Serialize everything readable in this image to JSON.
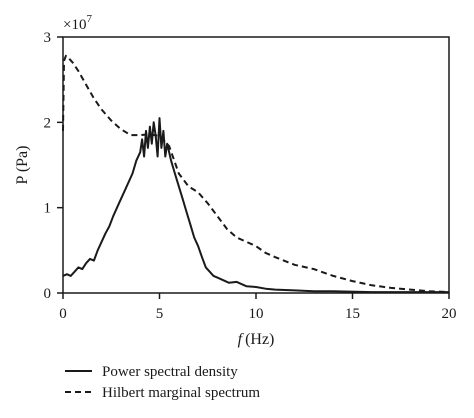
{
  "chart_data": {
    "type": "line",
    "xlabel_symbol": "f",
    "xlabel_unit": "(Hz)",
    "ylabel": "P (Pa)",
    "y_multiplier_base": "×10",
    "y_multiplier_exponent": "7",
    "xlim": [
      0,
      20
    ],
    "ylim": [
      0,
      3
    ],
    "xticks": [
      0,
      5,
      10,
      15,
      20
    ],
    "yticks": [
      0,
      1,
      2,
      3
    ],
    "grid": false,
    "legend_position": "bottom",
    "series": [
      {
        "name": "Power spectral density",
        "line_style": "solid",
        "color": "#1a1a1a",
        "x": [
          0,
          0.2,
          0.4,
          0.6,
          0.8,
          1.0,
          1.2,
          1.4,
          1.6,
          1.8,
          2.0,
          2.2,
          2.4,
          2.6,
          2.8,
          3.0,
          3.2,
          3.4,
          3.6,
          3.8,
          4.0,
          4.1,
          4.2,
          4.3,
          4.4,
          4.5,
          4.6,
          4.7,
          4.8,
          4.9,
          5.0,
          5.1,
          5.2,
          5.3,
          5.4,
          5.6,
          5.8,
          6.0,
          6.2,
          6.4,
          6.6,
          6.8,
          7.0,
          7.2,
          7.4,
          7.6,
          7.8,
          8.0,
          8.3,
          8.6,
          9.0,
          9.5,
          10.0,
          10.5,
          11.0,
          12.0,
          13.0,
          14.0,
          16.0,
          18.0,
          20.0
        ],
        "y": [
          0.2,
          0.22,
          0.2,
          0.25,
          0.3,
          0.28,
          0.35,
          0.4,
          0.38,
          0.5,
          0.6,
          0.7,
          0.78,
          0.9,
          1.0,
          1.1,
          1.2,
          1.3,
          1.4,
          1.55,
          1.65,
          1.8,
          1.6,
          1.9,
          1.7,
          1.95,
          1.75,
          2.0,
          1.85,
          1.6,
          2.05,
          1.7,
          1.9,
          1.6,
          1.75,
          1.55,
          1.4,
          1.25,
          1.1,
          0.95,
          0.8,
          0.65,
          0.55,
          0.42,
          0.3,
          0.25,
          0.2,
          0.18,
          0.15,
          0.12,
          0.13,
          0.08,
          0.07,
          0.05,
          0.04,
          0.03,
          0.02,
          0.02,
          0.01,
          0.01,
          0.01
        ]
      },
      {
        "name": "Hilbert marginal spectrum",
        "line_style": "dashed",
        "color": "#1a1a1a",
        "x": [
          0,
          0.05,
          0.15,
          0.3,
          0.5,
          0.8,
          1.0,
          1.3,
          1.6,
          2.0,
          2.5,
          3.0,
          3.5,
          4.0,
          4.5,
          5.0,
          5.5,
          6.0,
          6.5,
          7.0,
          7.5,
          8.0,
          8.5,
          9.0,
          9.5,
          10.0,
          10.5,
          11.0,
          12.0,
          13.0,
          14.0,
          15.0,
          16.0,
          17.0,
          18.0,
          19.0,
          20.0
        ],
        "y": [
          1.9,
          2.72,
          2.78,
          2.75,
          2.7,
          2.6,
          2.52,
          2.4,
          2.28,
          2.15,
          2.02,
          1.92,
          1.85,
          1.85,
          1.86,
          1.84,
          1.72,
          1.4,
          1.25,
          1.18,
          1.05,
          0.9,
          0.75,
          0.65,
          0.6,
          0.55,
          0.47,
          0.42,
          0.33,
          0.28,
          0.2,
          0.14,
          0.09,
          0.06,
          0.04,
          0.02,
          0.01
        ]
      }
    ]
  }
}
